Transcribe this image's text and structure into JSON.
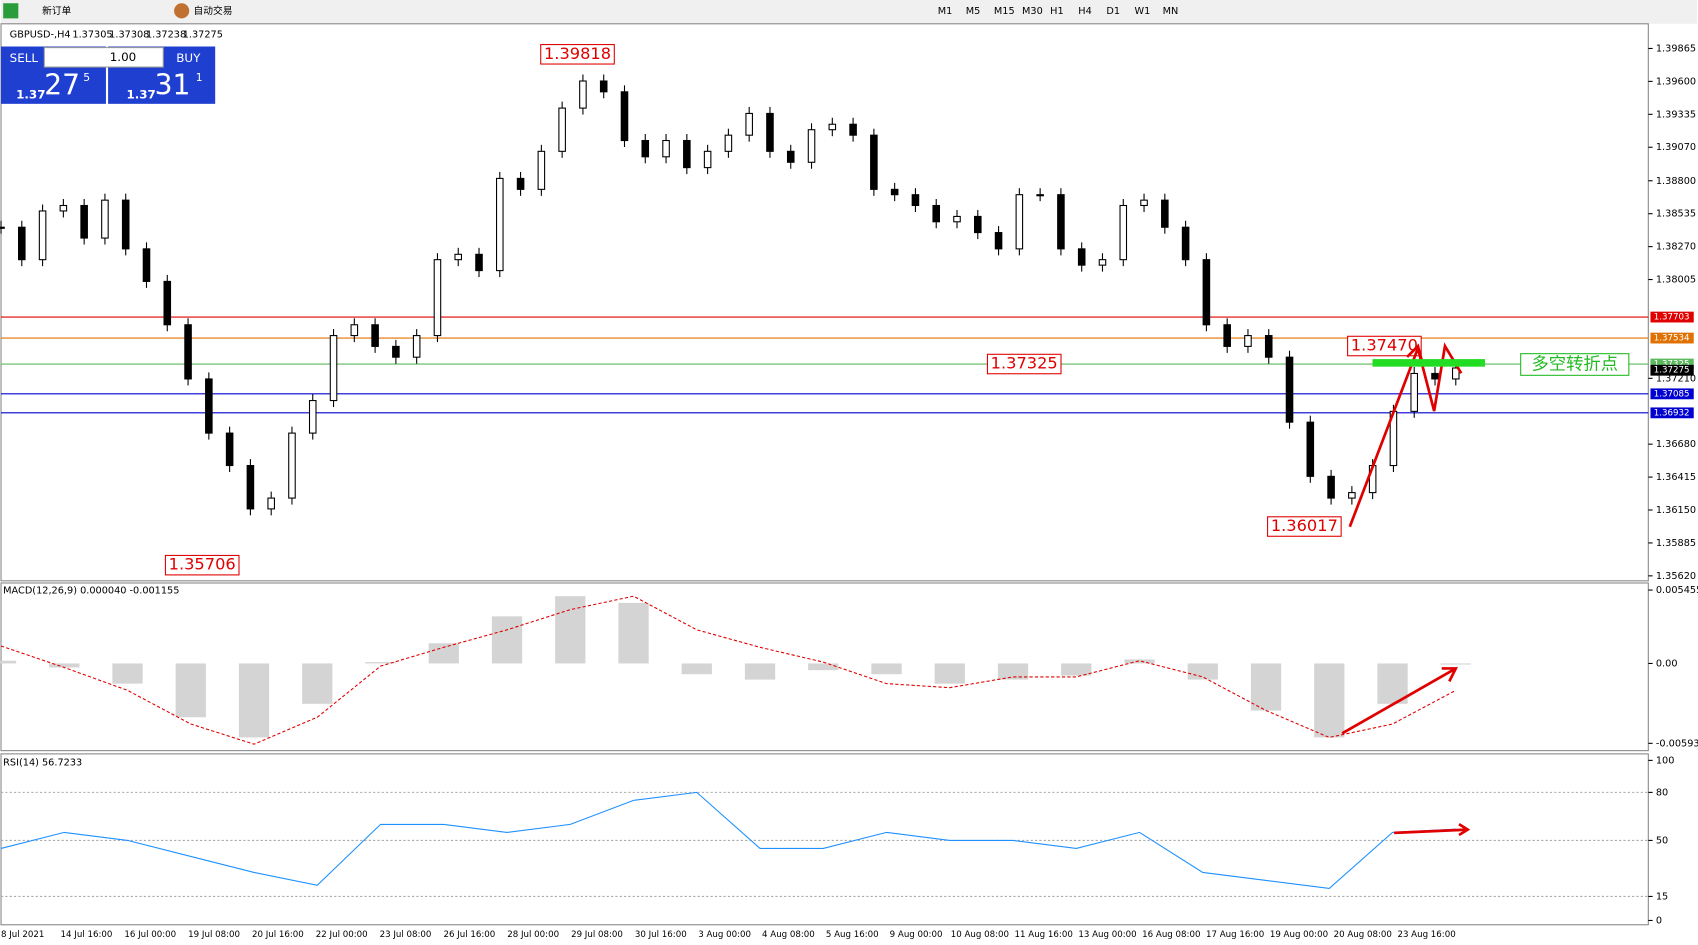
{
  "toolbar": {
    "new_order": "新订单",
    "auto_trade": "自动交易",
    "timeframes": [
      "M1",
      "M5",
      "M15",
      "M30",
      "H1",
      "H4",
      "D1",
      "W1",
      "MN"
    ]
  },
  "header": {
    "symbol": "GBPUSD-,H4",
    "open": 1.37305,
    "high": 1.37308,
    "low": 1.37238,
    "close": 1.37275
  },
  "trade_panel": {
    "sell": "SELL",
    "buy": "BUY",
    "lots": "1.00",
    "sell_big": "1.37",
    "sell_pips": "27",
    "sell_frac": "5",
    "buy_big": "1.37",
    "buy_pips": "31",
    "buy_frac": "1"
  },
  "chart_data": [
    {
      "type": "candlestick",
      "closes": [
        1.38426,
        1.38165,
        1.38557,
        1.38601,
        1.38339,
        1.38644,
        1.38252,
        1.3799,
        1.37641,
        1.37205,
        1.36769,
        1.36508,
        1.36159,
        1.36246,
        1.36769,
        1.37031,
        1.37554,
        1.37641,
        1.37467,
        1.3738,
        1.37554,
        1.38165,
        1.38208,
        1.38077,
        1.38819,
        1.38731,
        1.39037,
        1.39385,
        1.39603,
        1.39516,
        1.39124,
        1.38993,
        1.39124,
        1.38906,
        1.39037,
        1.39167,
        1.39342,
        1.39037,
        1.38949,
        1.39211,
        1.39255,
        1.39167,
        1.38731,
        1.38688,
        1.38601,
        1.3847,
        1.38513,
        1.38383,
        1.38252,
        1.38688,
        1.38688,
        1.38252,
        1.38121,
        1.38165,
        1.38601,
        1.38644,
        1.38426,
        1.38165,
        1.37641,
        1.37467,
        1.37554,
        1.3738,
        1.36857,
        1.36421,
        1.36246,
        1.3629,
        1.36508,
        1.36944,
        1.37249,
        1.37205,
        1.37293
      ],
      "ylim": [
        1.3558,
        1.4002
      ],
      "yticks": [
        {
          "value": 1.39865,
          "label": "1.39865"
        },
        {
          "value": 1.396,
          "label": "1.39600"
        },
        {
          "value": 1.39335,
          "label": "1.39335"
        },
        {
          "value": 1.3907,
          "label": "1.39070"
        },
        {
          "value": 1.388,
          "label": "1.38800"
        },
        {
          "value": 1.38535,
          "label": "1.38535"
        },
        {
          "value": 1.3827,
          "label": "1.38270"
        },
        {
          "value": 1.38005,
          "label": "1.38005"
        },
        {
          "value": 1.3721,
          "label": "1.37210"
        },
        {
          "value": 1.3668,
          "label": "1.36680"
        },
        {
          "value": 1.36415,
          "label": "1.36415"
        },
        {
          "value": 1.3615,
          "label": "1.36150"
        },
        {
          "value": 1.35885,
          "label": "1.35885"
        },
        {
          "value": 1.3562,
          "label": "1.35620"
        }
      ],
      "hlines": [
        {
          "value": 1.37703,
          "label": "1.37703",
          "color": "#e00000"
        },
        {
          "value": 1.37534,
          "label": "1.37534",
          "color": "#e07000"
        },
        {
          "value": 1.37325,
          "label": "1.37325",
          "color": "#5cb85c"
        },
        {
          "value": 1.37085,
          "label": "1.37085",
          "color": "#0000d0"
        },
        {
          "value": 1.36932,
          "label": "1.36932",
          "color": "#0000d0"
        }
      ],
      "annotations": [
        {
          "value": 1.39818,
          "label": "1.39818"
        },
        {
          "value": 1.35706,
          "label": "1.35706"
        },
        {
          "value": 1.37325,
          "label": "1.37325"
        },
        {
          "value": 1.3747,
          "label": "1.37470"
        },
        {
          "value": 1.36017,
          "label": "1.36017"
        }
      ],
      "note": "多空转折点"
    },
    {
      "type": "macd",
      "title": "MACD(12,26,9) 0.000040 -0.001155",
      "histogram": [
        0.0002,
        -0.0003,
        -0.0015,
        -0.004,
        -0.0055,
        -0.003,
        0.0001,
        0.0015,
        0.0035,
        0.005,
        0.0045,
        -0.0008,
        -0.0012,
        -0.0005,
        -0.0008,
        -0.0015,
        -0.0012,
        -0.0009,
        0.0003,
        -0.0012,
        -0.0035,
        -0.0055,
        -0.003,
        0
      ],
      "signal": [
        0.0013,
        -0.0003,
        -0.002,
        -0.0045,
        -0.006,
        -0.004,
        -0.0002,
        0.0012,
        0.0025,
        0.004,
        0.005,
        0.0025,
        0.0012,
        0.0001,
        -0.0015,
        -0.0018,
        -0.001,
        -0.001,
        0.0002,
        -0.001,
        -0.0035,
        -0.0055,
        -0.0045,
        -0.002
      ],
      "ylim": [
        -0.0064,
        0.0059
      ],
      "yticks": [
        0.005455,
        {
          "value": 0,
          "label": "0.00"
        },
        -0.005938
      ]
    },
    {
      "type": "rsi",
      "title": "RSI(14) 56.7233",
      "values": [
        45,
        55,
        50,
        40,
        30,
        22,
        60,
        60,
        55,
        60,
        75,
        80,
        45,
        45,
        55,
        50,
        50,
        45,
        55,
        30,
        25,
        20,
        55,
        57
      ],
      "ylim": [
        0,
        100
      ],
      "yticks": [
        100,
        80,
        50,
        15,
        0
      ],
      "levels": [
        80,
        50,
        15
      ]
    }
  ],
  "time_axis": [
    "8 Jul 2021",
    "14 Jul 16:00",
    "16 Jul 00:00",
    "19 Jul 08:00",
    "20 Jul 16:00",
    "22 Jul 00:00",
    "23 Jul 08:00",
    "26 Jul 16:00",
    "28 Jul 00:00",
    "29 Jul 08:00",
    "30 Jul 16:00",
    "3 Aug 00:00",
    "4 Aug 08:00",
    "5 Aug 16:00",
    "9 Aug 00:00",
    "10 Aug 08:00",
    "11 Aug 16:00",
    "13 Aug 00:00",
    "16 Aug 08:00",
    "17 Aug 16:00",
    "19 Aug 00:00",
    "20 Aug 08:00",
    "23 Aug 16:00"
  ]
}
